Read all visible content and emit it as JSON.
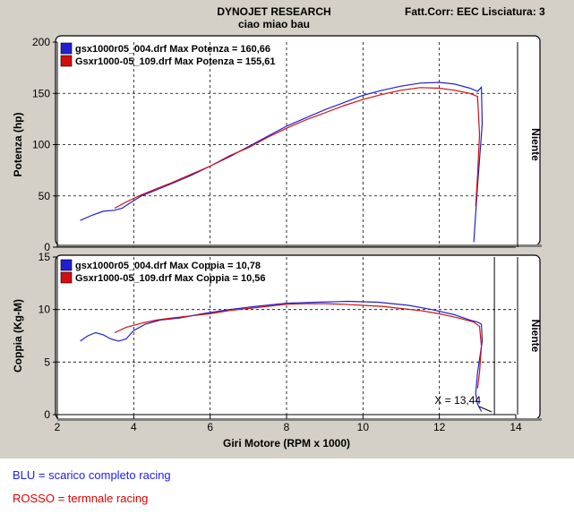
{
  "header": {
    "company": "DYNOJET RESEARCH",
    "subtitle": "ciao miao bau",
    "info": "Fatt.Corr: EEC  Lisciatura: 3"
  },
  "notes": {
    "blue": "BLU = scarico completo racing",
    "red": "ROSSO = termnale racing"
  },
  "colors": {
    "blue": "#2020d0",
    "red": "#d01010",
    "grid": "#000000",
    "panel": "#ffffff",
    "window": "#d4d0c8"
  },
  "chart_data": [
    {
      "type": "line",
      "title": "",
      "ylabel": "Potenza (hp)",
      "right_label": "Niente",
      "xlim": [
        2,
        14
      ],
      "ylim": [
        0,
        200
      ],
      "yticks": [
        0,
        50,
        100,
        150,
        200
      ],
      "xticks": [
        2,
        4,
        6,
        8,
        10,
        12,
        14
      ],
      "grid": true,
      "legend": [
        "gsx1000r05_004.drf Max Potenza = 160,66",
        "Gsxr1000-05_109.drf Max Potenza = 155,61"
      ],
      "series": [
        {
          "color": "blue",
          "x": [
            2.6,
            2.9,
            3.2,
            3.5,
            3.7,
            3.9,
            4.2,
            4.6,
            5.0,
            5.5,
            6.0,
            6.5,
            7.0,
            7.5,
            8.0,
            8.5,
            9.0,
            9.5,
            10.0,
            10.5,
            11.0,
            11.5,
            12.0,
            12.4,
            12.8,
            13.0,
            13.1,
            13.12,
            13.0,
            12.9
          ],
          "y": [
            26,
            31,
            35,
            36,
            38,
            43,
            50,
            56,
            62,
            70,
            79,
            88,
            98,
            108,
            118,
            126,
            134,
            141,
            148,
            153,
            157,
            160,
            160.7,
            159,
            155,
            152,
            156,
            120,
            60,
            5
          ]
        },
        {
          "color": "red",
          "x": [
            3.5,
            3.8,
            4.2,
            4.6,
            5.0,
            5.5,
            6.0,
            6.5,
            7.0,
            7.5,
            8.0,
            8.5,
            9.0,
            9.5,
            10.0,
            10.5,
            11.0,
            11.5,
            12.0,
            12.4,
            12.8,
            13.0,
            13.05,
            13.0,
            12.95
          ],
          "y": [
            38,
            44,
            51,
            57,
            63,
            71,
            79,
            89,
            97,
            107,
            116,
            124,
            131,
            138,
            144,
            149,
            153,
            155.6,
            155,
            153,
            150,
            147,
            110,
            70,
            40
          ]
        }
      ]
    },
    {
      "type": "line",
      "title": "",
      "ylabel": "Coppia (Kg-M)",
      "right_label": "Niente",
      "xlabel": "Giri Motore (RPM x 1000)",
      "xlim": [
        2,
        14
      ],
      "ylim": [
        0,
        15
      ],
      "yticks": [
        0,
        5,
        10,
        15
      ],
      "xticks": [
        2,
        4,
        6,
        8,
        10,
        12,
        14
      ],
      "grid": true,
      "legend": [
        "gsx1000r05_004.drf Max Coppia = 10,78",
        "Gsxr1000-05_109.drf Max Coppia = 10,56"
      ],
      "annotation": {
        "text": "X = 13,44",
        "x": 13.44
      },
      "series": [
        {
          "color": "blue",
          "x": [
            2.6,
            2.8,
            3.0,
            3.2,
            3.4,
            3.6,
            3.8,
            4.0,
            4.3,
            4.7,
            5.2,
            5.8,
            6.5,
            7.2,
            8.0,
            8.8,
            9.6,
            10.4,
            11.2,
            11.8,
            12.4,
            12.8,
            13.0,
            13.1,
            13.12,
            13.0,
            12.95,
            13.0,
            13.1
          ],
          "y": [
            7.0,
            7.5,
            7.8,
            7.6,
            7.2,
            7.0,
            7.2,
            8.0,
            8.6,
            9.0,
            9.2,
            9.6,
            10.0,
            10.3,
            10.6,
            10.7,
            10.78,
            10.7,
            10.4,
            10.0,
            9.5,
            9.0,
            8.8,
            8.6,
            7.0,
            4.0,
            2.0,
            1.0,
            0.3
          ]
        },
        {
          "color": "red",
          "x": [
            3.5,
            3.8,
            4.2,
            4.6,
            5.0,
            5.5,
            6.0,
            6.5,
            7.0,
            7.5,
            8.0,
            8.5,
            9.0,
            9.5,
            10.0,
            10.5,
            11.0,
            11.5,
            12.0,
            12.5,
            12.9,
            13.05,
            13.1,
            13.05,
            13.0
          ],
          "y": [
            7.8,
            8.3,
            8.7,
            9.0,
            9.2,
            9.4,
            9.6,
            9.9,
            10.1,
            10.3,
            10.5,
            10.55,
            10.56,
            10.5,
            10.4,
            10.3,
            10.1,
            9.9,
            9.6,
            9.2,
            8.8,
            8.4,
            6.5,
            4.0,
            2.5
          ]
        }
      ]
    }
  ]
}
